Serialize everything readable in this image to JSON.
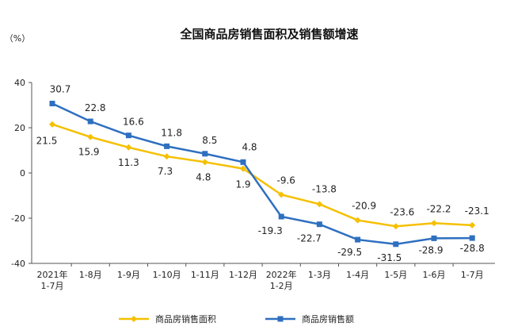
{
  "chart_data": {
    "type": "line",
    "title": "全国商品房销售面积及销售额增速",
    "unit_label": "（%）",
    "categories": [
      [
        "2021年",
        "1-7月"
      ],
      [
        "1-8月"
      ],
      [
        "1-9月"
      ],
      [
        "1-10月"
      ],
      [
        "1-11月"
      ],
      [
        "1-12月"
      ],
      [
        "2022年",
        "1-2月"
      ],
      [
        "1-3月"
      ],
      [
        "1-4月"
      ],
      [
        "1-5月"
      ],
      [
        "1-6月"
      ],
      [
        "1-7月"
      ]
    ],
    "ylim": [
      -40,
      40
    ],
    "yticks": [
      -40,
      -20,
      0,
      20,
      40
    ],
    "series": [
      {
        "name": "商品房销售面积",
        "color": "#F5C000",
        "marker": "diamond",
        "values": [
          21.5,
          15.9,
          11.3,
          7.3,
          4.8,
          1.9,
          -9.6,
          -13.8,
          -20.9,
          -23.6,
          -22.2,
          -23.1
        ],
        "labels": [
          "21.5",
          "15.9",
          "11.3",
          "7.3",
          "4.8",
          "1.9",
          "-9.6",
          "-13.8",
          "-20.9",
          "-23.6",
          "-22.2",
          "-23.1"
        ]
      },
      {
        "name": "商品房销售额",
        "color": "#2E6FC0",
        "marker": "square",
        "values": [
          30.7,
          22.8,
          16.6,
          11.8,
          8.5,
          4.8,
          -19.3,
          -22.7,
          -29.5,
          -31.5,
          -28.9,
          -28.8
        ],
        "labels": [
          "30.7",
          "22.8",
          "16.6",
          "11.8",
          "8.5",
          "4.8",
          "-19.3",
          "-22.7",
          "-29.5",
          "-31.5",
          "-28.9",
          "-28.8"
        ]
      }
    ]
  }
}
